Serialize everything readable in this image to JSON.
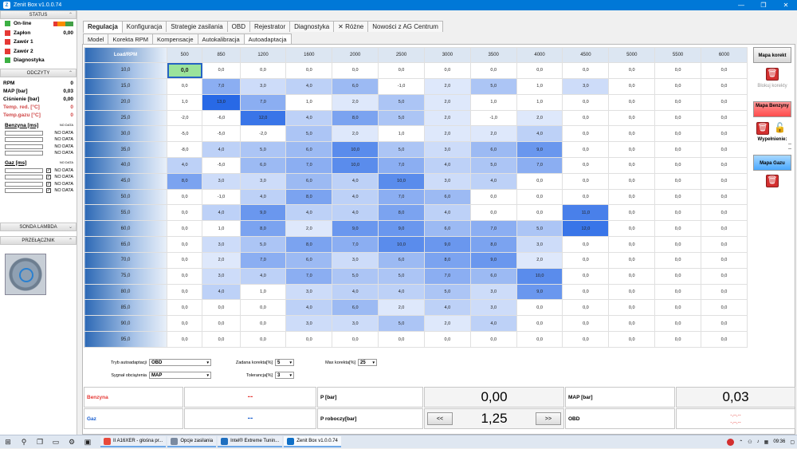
{
  "window": {
    "title": "Zenit Box v1.0.0.74",
    "controls": [
      "—",
      "❐",
      "✕"
    ]
  },
  "left": {
    "status_title": "STATUS",
    "status": [
      {
        "label": "On-line",
        "color": "#3cb043",
        "value": ""
      },
      {
        "label": "Zapłon",
        "color": "#e53935",
        "value": "0,00"
      },
      {
        "label": "Zawór 1",
        "color": "#e53935",
        "value": ""
      },
      {
        "label": "Zawór 2",
        "color": "#e53935",
        "value": ""
      },
      {
        "label": "Diagnostyka",
        "color": "#3cb043",
        "value": ""
      }
    ],
    "readings_title": "ODCZYTY",
    "readings": [
      {
        "label": "RPM",
        "value": "0",
        "red": false
      },
      {
        "label": "MAP [bar]",
        "value": "0,03",
        "red": false
      },
      {
        "label": "Ciśnienie [bar]",
        "value": "0,00",
        "red": false
      },
      {
        "label": "Temp. red. [°C]",
        "value": "0",
        "red": true
      },
      {
        "label": "Temp.gazu [°C]",
        "value": "0",
        "red": true
      }
    ],
    "benzyna_label": "Benzyna [ms]",
    "benzyna_tiny": "NO DATA",
    "benzyna_rows": [
      "NO DATA",
      "NO DATA",
      "NO DATA",
      "NO DATA"
    ],
    "gaz_label": "Gaz [ms]",
    "gaz_tiny": "NO DATA",
    "gaz_rows": [
      "NO DATA",
      "NO DATA",
      "NO DATA",
      "NO DATA"
    ],
    "sonda_title": "SONDA LAMBDA",
    "przel_title": "PRZEŁĄCZNIK"
  },
  "tabs": [
    "Regulacja",
    "Konfiguracja",
    "Strategie zasilania",
    "OBD",
    "Rejestrator",
    "Diagnostyka",
    "Różne",
    "Nowości z AG Centrum"
  ],
  "subtabs": [
    "Model",
    "Korekta RPM",
    "Kompensacje",
    "Autokalibracja",
    "Autoadaptacja"
  ],
  "grid": {
    "corner": "Load/RPM",
    "cols": [
      "500",
      "850",
      "1200",
      "1600",
      "2000",
      "2500",
      "3000",
      "3500",
      "4000",
      "4500",
      "5000",
      "5500",
      "6000"
    ],
    "rows": [
      {
        "load": "10,0",
        "v": [
          "0,0",
          "0,0",
          "0,0",
          "0,0",
          "0,0",
          "0,0",
          "0,0",
          "0,0",
          "0,0",
          "0,0",
          "0,0",
          "0,0",
          "0,0"
        ]
      },
      {
        "load": "15,0",
        "v": [
          "0,0",
          "7,0",
          "3,0",
          "4,0",
          "6,0",
          "-1,0",
          "2,0",
          "5,0",
          "1,0",
          "3,0",
          "0,0",
          "0,0",
          "0,0"
        ]
      },
      {
        "load": "20,0",
        "v": [
          "1,0",
          "13,0",
          "7,0",
          "1,0",
          "2,0",
          "5,0",
          "2,0",
          "1,0",
          "1,0",
          "0,0",
          "0,0",
          "0,0",
          "0,0"
        ]
      },
      {
        "load": "25,0",
        "v": [
          "-2,0",
          "-6,0",
          "12,0",
          "4,0",
          "8,0",
          "5,0",
          "2,0",
          "-1,0",
          "2,0",
          "0,0",
          "0,0",
          "0,0",
          "0,0"
        ]
      },
      {
        "load": "30,0",
        "v": [
          "-5,0",
          "-5,0",
          "-2,0",
          "5,0",
          "2,0",
          "1,0",
          "2,0",
          "2,0",
          "4,0",
          "0,0",
          "0,0",
          "0,0",
          "0,0"
        ]
      },
      {
        "load": "35,0",
        "v": [
          "-8,0",
          "4,0",
          "5,0",
          "6,0",
          "10,0",
          "5,0",
          "3,0",
          "6,0",
          "9,0",
          "0,0",
          "0,0",
          "0,0",
          "0,0"
        ]
      },
      {
        "load": "40,0",
        "v": [
          "4,0",
          "-5,0",
          "6,0",
          "7,0",
          "10,0",
          "7,0",
          "4,0",
          "5,0",
          "7,0",
          "0,0",
          "0,0",
          "0,0",
          "0,0"
        ]
      },
      {
        "load": "45,0",
        "v": [
          "8,0",
          "3,0",
          "3,0",
          "6,0",
          "4,0",
          "10,0",
          "3,0",
          "4,0",
          "0,0",
          "0,0",
          "0,0",
          "0,0",
          "0,0"
        ]
      },
      {
        "load": "50,0",
        "v": [
          "0,0",
          "-1,0",
          "4,0",
          "8,0",
          "4,0",
          "7,0",
          "6,0",
          "0,0",
          "0,0",
          "0,0",
          "0,0",
          "0,0",
          "0,0"
        ]
      },
      {
        "load": "55,0",
        "v": [
          "0,0",
          "4,0",
          "9,0",
          "4,0",
          "4,0",
          "8,0",
          "4,0",
          "0,0",
          "0,0",
          "11,0",
          "0,0",
          "0,0",
          "0,0"
        ]
      },
      {
        "load": "60,0",
        "v": [
          "0,0",
          "1,0",
          "8,0",
          "2,0",
          "9,0",
          "9,0",
          "6,0",
          "7,0",
          "5,0",
          "12,0",
          "0,0",
          "0,0",
          "0,0"
        ]
      },
      {
        "load": "65,0",
        "v": [
          "0,0",
          "3,0",
          "5,0",
          "8,0",
          "7,0",
          "10,0",
          "9,0",
          "8,0",
          "3,0",
          "0,0",
          "0,0",
          "0,0",
          "0,0"
        ]
      },
      {
        "load": "70,0",
        "v": [
          "0,0",
          "2,0",
          "7,0",
          "6,0",
          "3,0",
          "6,0",
          "8,0",
          "9,0",
          "2,0",
          "0,0",
          "0,0",
          "0,0",
          "0,0"
        ]
      },
      {
        "load": "75,0",
        "v": [
          "0,0",
          "3,0",
          "4,0",
          "7,0",
          "5,0",
          "5,0",
          "7,0",
          "6,0",
          "10,0",
          "0,0",
          "0,0",
          "0,0",
          "0,0"
        ]
      },
      {
        "load": "80,0",
        "v": [
          "0,0",
          "4,0",
          "1,0",
          "3,0",
          "4,0",
          "4,0",
          "5,0",
          "3,0",
          "9,0",
          "0,0",
          "0,0",
          "0,0",
          "0,0"
        ]
      },
      {
        "load": "85,0",
        "v": [
          "0,0",
          "0,0",
          "0,0",
          "4,0",
          "6,0",
          "2,0",
          "4,0",
          "3,0",
          "0,0",
          "0,0",
          "0,0",
          "0,0",
          "0,0"
        ]
      },
      {
        "load": "90,0",
        "v": [
          "0,0",
          "0,0",
          "0,0",
          "3,0",
          "3,0",
          "5,0",
          "2,0",
          "4,0",
          "0,0",
          "0,0",
          "0,0",
          "0,0",
          "0,0"
        ]
      },
      {
        "load": "95,0",
        "v": [
          "0,0",
          "0,0",
          "0,0",
          "0,0",
          "0,0",
          "0,0",
          "0,0",
          "0,0",
          "0,0",
          "0,0",
          "0,0",
          "0,0",
          "0,0"
        ]
      }
    ],
    "selected_value": "0,0"
  },
  "side": {
    "mapa_korekt": "Mapa korekt",
    "blokuj": "Blokuj korekty",
    "mapa_benzyny": "Mapa Benzyny",
    "wypelnienie": "Wypełnienie:",
    "wyp_val": "--",
    "wyp_val2": "--",
    "mapa_gazu": "Mapa Gazu"
  },
  "controls": {
    "tryb_label": "Tryb autoadaptacji",
    "tryb_value": "OBD",
    "sygnal_label": "Sygnał obciążenia",
    "sygnal_value": "MAP",
    "zadana_label": "Zadana korekta[%]",
    "zadana_value": "5",
    "tol_label": "Tolerancja[%]",
    "tol_value": "3",
    "max_label": "Max korekta[%]",
    "max_value": "25"
  },
  "status": {
    "benzyna": "Benzyna",
    "benzyna_val": "--",
    "gaz": "Gaz",
    "gaz_val": "--",
    "p_label": "P [bar]",
    "p_val": "0,00",
    "pr_label": "P roboczy[bar]",
    "pr_val": "1,25",
    "prev": "<<",
    "next": ">>",
    "map_label": "MAP [bar]",
    "map_val": "0,03",
    "obd_label": "OBD",
    "obd_v1": "-,--,--",
    "obd_v2": "-,--,--"
  },
  "taskbar": {
    "apps": [
      {
        "label": "II A16XER - głośna pr...",
        "color": "#e84a3c"
      },
      {
        "label": "Opcje zasilania",
        "color": "#7a8aa0"
      },
      {
        "label": "Intel® Extreme Tunin...",
        "color": "#1f6fbf"
      },
      {
        "label": "Zenit Box v1.0.0.74",
        "color": "#0f6fc6"
      }
    ],
    "time": "09:36"
  }
}
